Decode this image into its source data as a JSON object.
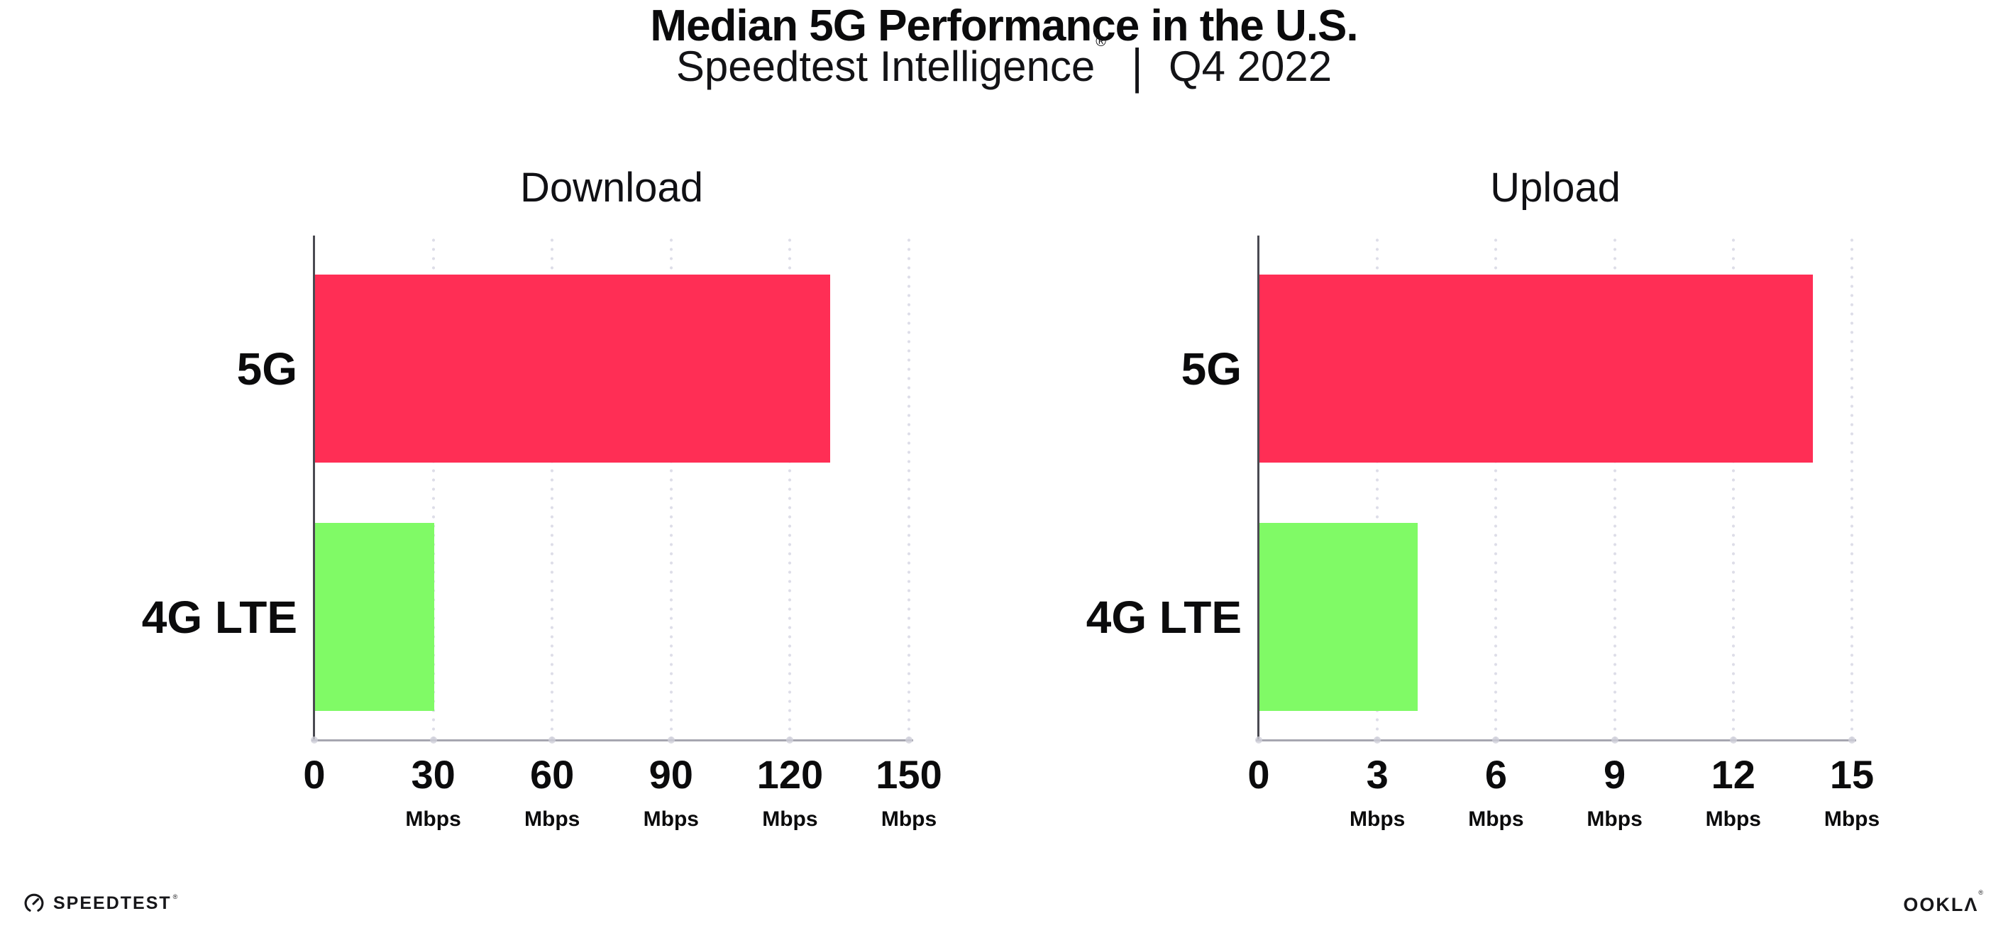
{
  "header": {
    "title": "Median 5G Performance in the U.S.",
    "subtitle": {
      "brand": "Speedtest Intelligence",
      "registered_mark": "®",
      "separator": "|",
      "period": "Q4 2022"
    }
  },
  "chart_data": [
    {
      "type": "bar",
      "orientation": "horizontal",
      "title": "Download",
      "categories": [
        "5G",
        "4G LTE"
      ],
      "values": [
        130,
        30
      ],
      "value_unit": "Mbps",
      "xlim": [
        0,
        150
      ],
      "xticks": [
        0,
        30,
        60,
        90,
        120,
        150
      ],
      "xtick_unit": "Mbps",
      "bar_colors": [
        "#ff2e55",
        "#80fa66"
      ],
      "grid": "vertical-dotted",
      "legend": "none"
    },
    {
      "type": "bar",
      "orientation": "horizontal",
      "title": "Upload",
      "categories": [
        "5G",
        "4G LTE"
      ],
      "values": [
        14,
        4
      ],
      "value_unit": "Mbps",
      "xlim": [
        0,
        15
      ],
      "xticks": [
        0,
        3,
        6,
        9,
        12,
        15
      ],
      "xtick_unit": "Mbps",
      "bar_colors": [
        "#ff2e55",
        "#80fa66"
      ],
      "grid": "vertical-dotted",
      "legend": "none"
    }
  ],
  "footer": {
    "speedtest_wordmark": "SPEEDTEST",
    "speedtest_mark": "®",
    "ookla_wordmark": "OOKLA",
    "ookla_mark": "®"
  },
  "style_colors": {
    "bar_5g": "#ff2e55",
    "bar_4g_lte": "#80fa66",
    "gridline": "#dddde8",
    "x_axis": "#a6a6b0",
    "y_axis": "#4a4a52",
    "text": "#0b0b0c"
  }
}
